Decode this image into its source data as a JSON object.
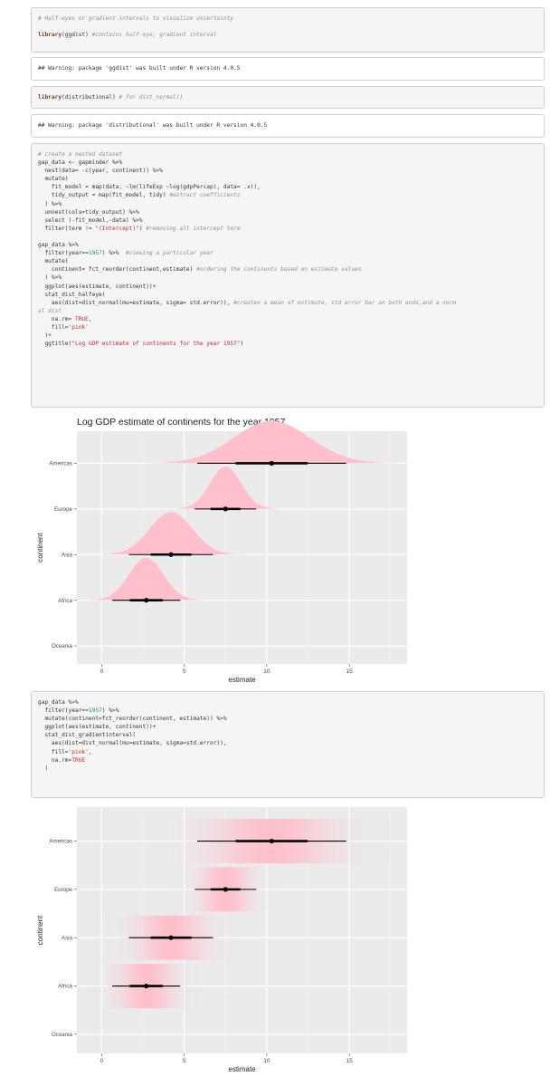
{
  "code_blocks": [
    {
      "id": "c1",
      "lines": [
        [
          {
            "t": "# Half-eyes or gradient intervals to visualize uncertainty",
            "c": "cm"
          }
        ],
        [],
        [
          {
            "t": "library",
            "c": "kw"
          },
          {
            "t": "(ggdist) "
          },
          {
            "t": "#contains half-eye, gradient interval",
            "c": "cm"
          }
        ]
      ]
    },
    {
      "id": "o1",
      "lines": [
        [
          {
            "t": "## Warning: package 'ggdist' was built under R version 4.0.5"
          }
        ]
      ]
    },
    {
      "id": "c2",
      "lines": [
        [
          {
            "t": "library",
            "c": "kw"
          },
          {
            "t": "(distributional) "
          },
          {
            "t": "# for dist_normal()",
            "c": "cm"
          }
        ]
      ]
    },
    {
      "id": "o2",
      "lines": [
        [
          {
            "t": "## Warning: package 'distributional' was built under R version 4.0.5"
          }
        ]
      ]
    },
    {
      "id": "c3",
      "lines": [
        [
          {
            "t": "# create a nested dataset",
            "c": "cm"
          }
        ],
        [
          {
            "t": "gap_data <- gapminder %>%"
          }
        ],
        [
          {
            "t": "  nest(data= -c(year, continent)) %>%"
          }
        ],
        [
          {
            "t": "  mutate("
          }
        ],
        [
          {
            "t": "    fit_model = map(data, ~lm(lifeExp ~log(gdpPercap), data= .x)),"
          }
        ],
        [
          {
            "t": "    tidy_output = map(fit_model, tidy) "
          },
          {
            "t": "#extract coefficients",
            "c": "cm"
          }
        ],
        [
          {
            "t": "  ) %>%"
          }
        ],
        [
          {
            "t": "  unnest(cols=tidy_output) %>%"
          }
        ],
        [
          {
            "t": "  select (-fit_model,-data) %>%"
          }
        ],
        [
          {
            "t": "  filter(term != "
          },
          {
            "t": "\"(Intercept)\"",
            "c": "st"
          },
          {
            "t": ") "
          },
          {
            "t": "#removing all intercept term",
            "c": "cm"
          }
        ],
        [],
        [
          {
            "t": "gap_data %>%"
          }
        ],
        [
          {
            "t": "  filter(year=="
          },
          {
            "t": "1957",
            "c": "nm"
          },
          {
            "t": ") %>%  "
          },
          {
            "t": "#viewing a particular year",
            "c": "cm"
          }
        ],
        [
          {
            "t": "  mutate("
          }
        ],
        [
          {
            "t": "    continent= fct_reorder(continent,estimate) "
          },
          {
            "t": "#ordering the continents based on estimate values",
            "c": "cm"
          }
        ],
        [
          {
            "t": "  ) %>%"
          }
        ],
        [
          {
            "t": "  ggplot(aes(estimate, continent))+"
          }
        ],
        [
          {
            "t": "  stat_dist_halfeye("
          }
        ],
        [
          {
            "t": "    aes(dist=dist_normal(mu=estimate, sigma= std.error)), "
          },
          {
            "t": "#creates a mean of estimate, std error bar on both ends,and a norm",
            "c": "cm"
          }
        ],
        [
          {
            "t": "al dist",
            "c": "cm"
          }
        ],
        [
          {
            "t": "    na.rm= "
          },
          {
            "t": "TRUE",
            "c": "st"
          },
          {
            "t": ","
          }
        ],
        [
          {
            "t": "    fill="
          },
          {
            "t": "'pink'",
            "c": "st"
          }
        ],
        [
          {
            "t": "  )+"
          }
        ],
        [
          {
            "t": "  ggtitle("
          },
          {
            "t": "\"Log GDP estimate of continents for the year 1957\"",
            "c": "st"
          },
          {
            "t": ")"
          }
        ]
      ]
    },
    {
      "id": "c4",
      "lines": [
        [
          {
            "t": "gap_data %>%"
          }
        ],
        [
          {
            "t": "  filter(year=="
          },
          {
            "t": "1957",
            "c": "nm"
          },
          {
            "t": ") %>%"
          }
        ],
        [
          {
            "t": "  mutate(continent=fct_reorder(continent, estimate)) %>%"
          }
        ],
        [
          {
            "t": "  ggplot(aes(estimate, continent))+"
          }
        ],
        [
          {
            "t": "  stat_dist_gradientinterval("
          }
        ],
        [
          {
            "t": "    aes(dist=dist_normal(mu=estimate, sigma=std.error)),"
          }
        ],
        [
          {
            "t": "    fill="
          },
          {
            "t": "'pink'",
            "c": "st"
          },
          {
            "t": ","
          }
        ],
        [
          {
            "t": "    na.rm="
          },
          {
            "t": "TRUE",
            "c": "st"
          }
        ],
        [
          {
            "t": "  )"
          }
        ]
      ]
    }
  ],
  "chart_data": [
    {
      "type": "halfeye",
      "title": "Log GDP estimate of continents for the year 1957",
      "xlabel": "estimate",
      "ylabel": "continent",
      "xticks": [
        "0",
        "5",
        "10",
        "15"
      ],
      "xlim": [
        -1.5,
        18.5
      ],
      "categories": [
        "Americas",
        "Europe",
        "Asia",
        "Africa",
        "Oceania"
      ],
      "series": [
        {
          "category": "Americas",
          "estimate": 10.3,
          "std_error": 2.3
        },
        {
          "category": "Europe",
          "estimate": 7.5,
          "std_error": 0.95
        },
        {
          "category": "Asia",
          "estimate": 4.2,
          "std_error": 1.3
        },
        {
          "category": "Africa",
          "estimate": 2.7,
          "std_error": 1.05
        }
      ],
      "fill": "#ffc0cb",
      "grid": true,
      "panel_bg": "#ebebeb"
    },
    {
      "type": "gradientinterval",
      "title": "",
      "xlabel": "estimate",
      "ylabel": "continent",
      "xticks": [
        "0",
        "5",
        "10",
        "15"
      ],
      "xlim": [
        -1.5,
        18.5
      ],
      "categories": [
        "Americas",
        "Europe",
        "Asia",
        "Africa",
        "Oceania"
      ],
      "series": [
        {
          "category": "Americas",
          "estimate": 10.3,
          "std_error": 2.3
        },
        {
          "category": "Europe",
          "estimate": 7.5,
          "std_error": 0.95
        },
        {
          "category": "Asia",
          "estimate": 4.2,
          "std_error": 1.3
        },
        {
          "category": "Africa",
          "estimate": 2.7,
          "std_error": 1.05
        }
      ],
      "fill": "#ffc0cb",
      "grid": true,
      "panel_bg": "#ebebeb"
    }
  ]
}
